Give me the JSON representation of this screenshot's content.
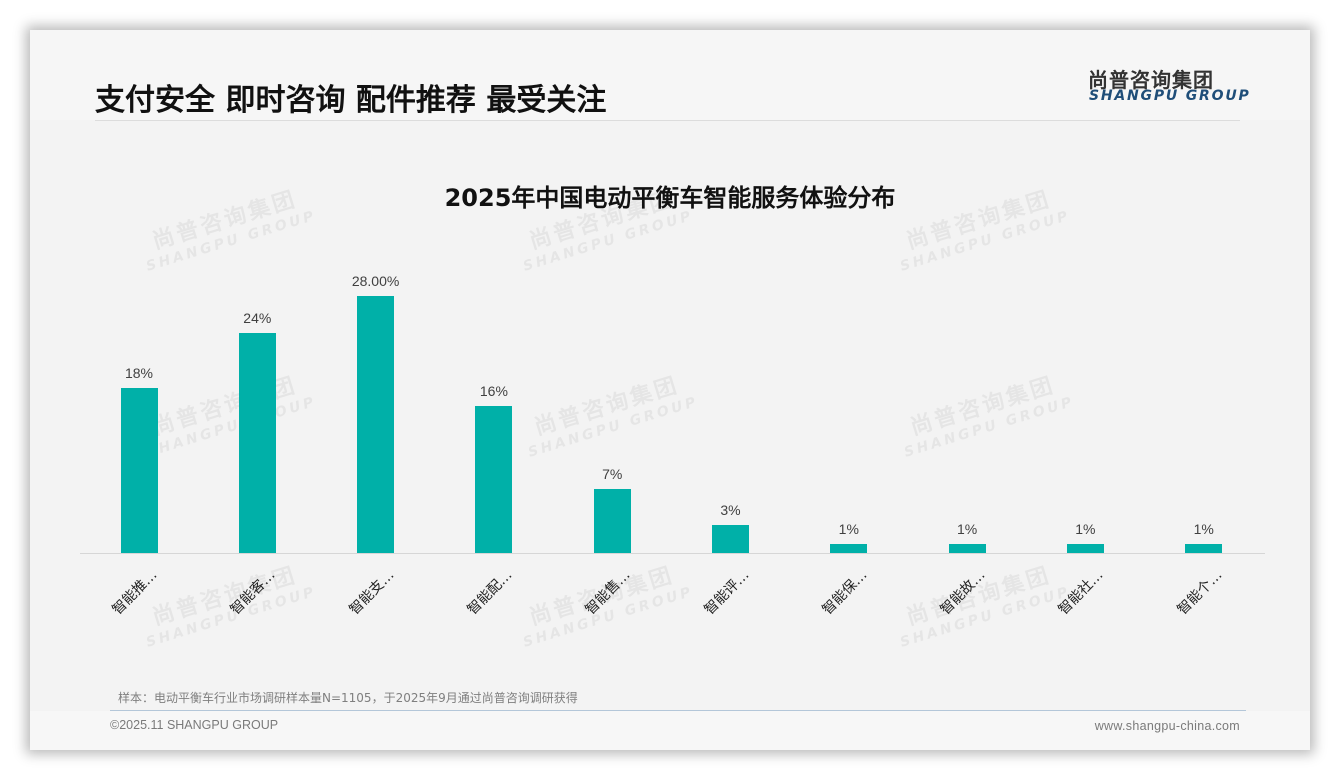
{
  "header": {
    "title": "支付安全 即时咨询 配件推荐 最受关注",
    "logo_cn": "尚普咨询集团",
    "logo_en": "SHANGPU GROUP"
  },
  "watermark": {
    "cn": "尚普咨询集团",
    "en": "SHANGPU GROUP"
  },
  "chart_data": {
    "type": "bar",
    "title": "2025年中国电动平衡车智能服务体验分布",
    "categories": [
      "智能推…",
      "智能客…",
      "智能支…",
      "智能配…",
      "智能售…",
      "智能评…",
      "智能保…",
      "智能故…",
      "智能社…",
      "智能个…"
    ],
    "values": [
      18,
      24,
      28,
      16,
      7,
      3,
      1,
      1,
      1,
      1
    ],
    "value_labels": [
      "18%",
      "24%",
      "28.00%",
      "16%",
      "7%",
      "3%",
      "1%",
      "1%",
      "1%",
      "1%"
    ],
    "xlabel": "",
    "ylabel": "",
    "ylim": [
      0,
      30
    ],
    "grid": false,
    "legend": "none",
    "bar_color": "#00b0a8",
    "unit": "%"
  },
  "footer": {
    "note": "样本：电动平衡车行业市场调研样本量N=1105，于2025年9月通过尚普咨询调研获得",
    "copyright": "©2025.11 SHANGPU GROUP",
    "website": "www.shangpu-china.com"
  }
}
